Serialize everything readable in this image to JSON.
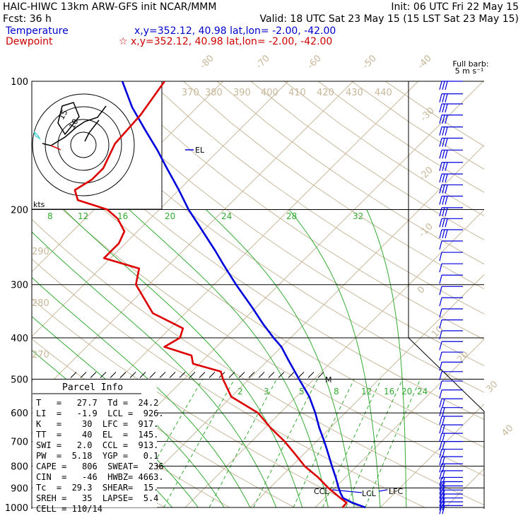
{
  "header": {
    "left1": "HAIC-HIWC 13km ARW-GFS init   NCAR/MMM",
    "right1": "Init: 06 UTC Fri 22 May 15",
    "left2": "Fcst:    36 h",
    "right2": "Valid: 18 UTC Sat 23 May 15 (15 LST Sat 23 May 15)",
    "temp_label": "Temperature",
    "temp_coords": "x,y=352.12, 40.98    lat,lon= -2.00, -42.00",
    "dew_label": "Dewpoint",
    "dew_coords": "☆ x,y=352.12, 40.98    lat,lon= -2.00, -42.00"
  },
  "barb_legend": {
    "line1": "Full barb:",
    "line2": "5 m s⁻¹"
  },
  "hodograph": {
    "units": "kts",
    "ring_labels": [
      "10",
      "15"
    ]
  },
  "parcel_info": {
    "title": "Parcel Info",
    "rows": [
      "T   =   27.7  Td =  24.2",
      "LI  =   -1.9  LCL =  926.",
      "K   =    30  LFC =  917.",
      "TT  =    40  EL  =  145.",
      "SWI =   2.0  CCL =  913.",
      "PW  =  5.18  YGP =   0.1",
      "CAPE =   806  SWEAT=  236",
      "CIN  =   -46  HWBZ= 4663.",
      "Tc  =  29.3  SHEAR=  15.",
      "SREH =   35  LAPSE=  5.4",
      "CELL = 110/14"
    ]
  },
  "level_labels": {
    "el": "EL",
    "ccl": "CCL",
    "lcl": "LCL",
    "lfc": "LFC",
    "m": "M"
  },
  "colors": {
    "temperature": "#0000dd",
    "dewpoint": "#dd0000",
    "mixing_ratio": "#33aa33",
    "isotherm": "#c8b89a"
  },
  "chart_data": {
    "type": "line",
    "title": "",
    "y_axis": {
      "scale": "log",
      "unit": "hPa",
      "ticks": [
        100,
        200,
        300,
        400,
        500,
        600,
        700,
        800,
        900,
        1000
      ]
    },
    "isotherm_labels": [
      "-80",
      "-70",
      "-60",
      "-50",
      "-40",
      "-30",
      "-20",
      "-10",
      "0",
      "10",
      "20",
      "30",
      "40"
    ],
    "theta_labels": [
      "370",
      "380",
      "390",
      "400",
      "410",
      "420",
      "430",
      "440",
      "290",
      "280",
      "270"
    ],
    "mixing_ratio_labels_upper": [
      "8",
      "12",
      "16",
      "20",
      "24",
      "28",
      "32"
    ],
    "mixing_ratio_labels_lower": [
      "2",
      "3",
      "5",
      "8",
      "12",
      "16",
      "20",
      "24"
    ],
    "series": [
      {
        "name": "Temperature",
        "points": [
          [
            1000,
            27.7
          ],
          [
            975,
            25
          ],
          [
            950,
            22.8
          ],
          [
            926,
            21.7
          ],
          [
            900,
            20.6
          ],
          [
            850,
            18.5
          ],
          [
            800,
            16.2
          ],
          [
            750,
            13.8
          ],
          [
            700,
            11.2
          ],
          [
            650,
            8.3
          ],
          [
            600,
            5.4
          ],
          [
            550,
            2
          ],
          [
            500,
            -2.3
          ],
          [
            450,
            -7
          ],
          [
            420,
            -10
          ],
          [
            400,
            -12.6
          ],
          [
            370,
            -16.5
          ],
          [
            340,
            -20.5
          ],
          [
            300,
            -26.6
          ],
          [
            270,
            -31.5
          ],
          [
            250,
            -35
          ],
          [
            220,
            -41
          ],
          [
            200,
            -45.5
          ],
          [
            180,
            -50
          ],
          [
            160,
            -55.2
          ],
          [
            145,
            -59.5
          ],
          [
            130,
            -64.5
          ],
          [
            115,
            -70
          ],
          [
            100,
            -75.5
          ]
        ]
      },
      {
        "name": "Dewpoint",
        "points": [
          [
            1000,
            24.2
          ],
          [
            975,
            24.1
          ],
          [
            950,
            22.4
          ],
          [
            900,
            19
          ],
          [
            850,
            15.8
          ],
          [
            800,
            12
          ],
          [
            750,
            8.7
          ],
          [
            700,
            5.1
          ],
          [
            650,
            0.8
          ],
          [
            600,
            -3.4
          ],
          [
            550,
            -10
          ],
          [
            500,
            -14
          ],
          [
            480,
            -15.5
          ],
          [
            460,
            -21
          ],
          [
            440,
            -22.5
          ],
          [
            420,
            -28
          ],
          [
            400,
            -27
          ],
          [
            380,
            -28
          ],
          [
            350,
            -35
          ],
          [
            300,
            -42
          ],
          [
            275,
            -44
          ],
          [
            260,
            -51
          ],
          [
            240,
            -51
          ],
          [
            225,
            -52
          ],
          [
            210,
            -55
          ],
          [
            200,
            -58
          ],
          [
            190,
            -64
          ],
          [
            180,
            -66
          ],
          [
            170,
            -65
          ],
          [
            160,
            -65
          ],
          [
            140,
            -67
          ],
          [
            120,
            -67.5
          ],
          [
            100,
            -69
          ]
        ]
      }
    ],
    "wind_barbs_hpa": [
      100,
      107,
      113,
      120,
      128,
      136,
      145,
      155,
      165,
      175,
      186,
      198,
      210,
      223,
      237,
      252,
      268,
      285,
      303,
      322,
      342,
      363,
      385,
      408,
      432,
      456,
      480,
      505,
      530,
      556,
      583,
      611,
      640,
      670,
      700,
      730,
      760,
      790,
      820,
      850,
      870,
      890,
      910,
      930,
      950,
      970,
      990
    ]
  }
}
